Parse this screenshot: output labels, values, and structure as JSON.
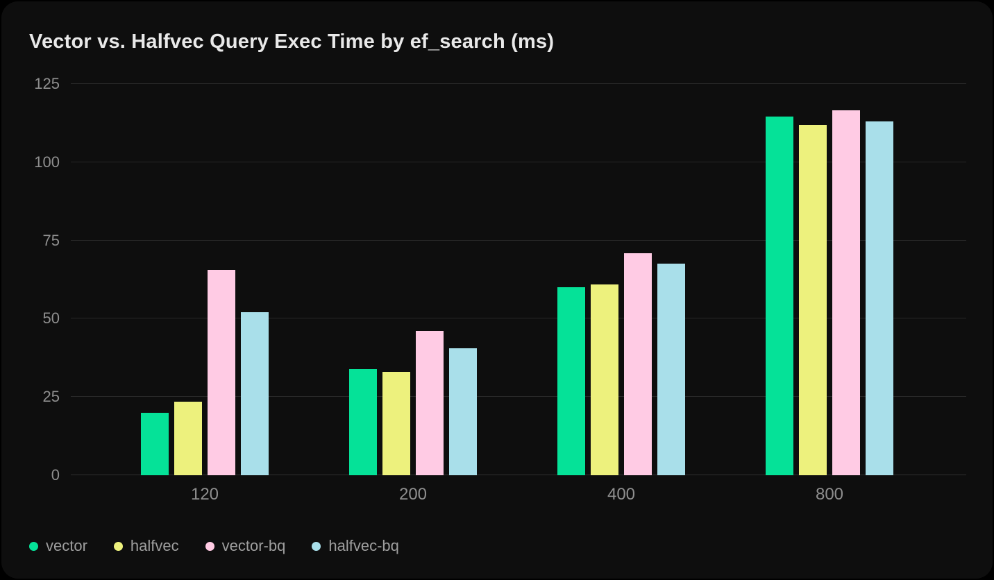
{
  "title": "Vector vs. Halfvec Query Exec Time by ef_search (ms)",
  "colors": {
    "page_background": "#000000",
    "card_background": "#0e0e0e",
    "gridline": "#282828",
    "title_text": "#e9e9e9",
    "axis_text": "#8f8f8f",
    "legend_text": "#9e9e9e"
  },
  "chart_data": {
    "type": "bar",
    "title": "Vector vs. Halfvec Query Exec Time by ef_search (ms)",
    "categories": [
      "120",
      "200",
      "400",
      "800"
    ],
    "series": [
      {
        "name": "vector",
        "color": "#05e298",
        "values": [
          20,
          34,
          60,
          114.5
        ]
      },
      {
        "name": "halfvec",
        "color": "#edf17d",
        "values": [
          23.5,
          33,
          61,
          112
        ]
      },
      {
        "name": "vector-bq",
        "color": "#ffcbe4",
        "values": [
          65.5,
          46,
          71,
          116.5
        ]
      },
      {
        "name": "halfvec-bq",
        "color": "#a9dfea",
        "values": [
          52,
          40.5,
          67.5,
          113
        ]
      }
    ],
    "xlabel": "",
    "ylabel": "",
    "ylim": [
      0,
      125
    ],
    "yticks": [
      0,
      25,
      50,
      75,
      100,
      125
    ],
    "grid": "horizontal-only",
    "legend_position": "bottom-left"
  },
  "legend": {
    "items": [
      "vector",
      "halfvec",
      "vector-bq",
      "halfvec-bq"
    ]
  }
}
